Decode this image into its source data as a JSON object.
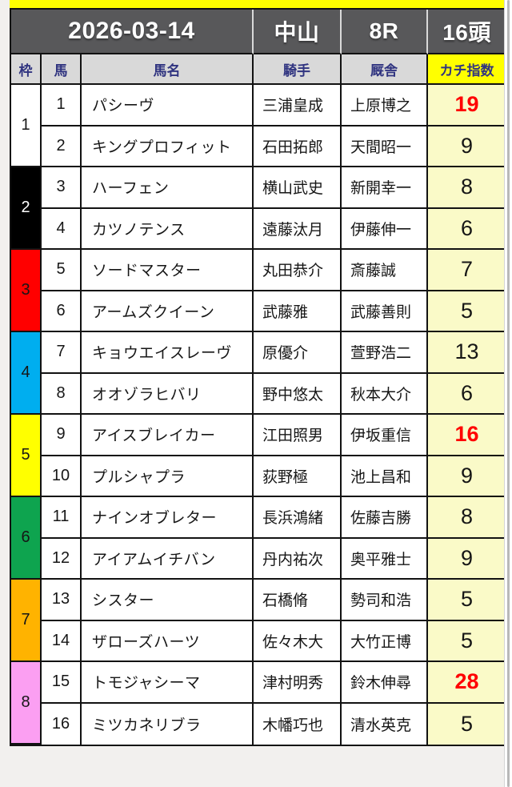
{
  "header": {
    "date": "2026-03-14",
    "venue": "中山",
    "race": "8R",
    "heads": "16頭"
  },
  "columns": [
    "枠",
    "馬",
    "馬名",
    "騎手",
    "厩舎",
    "カチ指数"
  ],
  "colors": {
    "top_bar": "#ffff00",
    "race_header_bg": "#58585a",
    "column_header_bg": "#d9d9d9",
    "column_header_text": "#303480",
    "index_header_bg": "#ffff00",
    "index_cell_bg": "#fafac8",
    "index_highlight_text": "#ff0000",
    "frame_1": "#ffffff",
    "frame_2": "#000000",
    "frame_3": "#ff0000",
    "frame_4": "#00aeef",
    "frame_5": "#ffff00",
    "frame_6": "#0ea44f",
    "frame_7": "#ffb300",
    "frame_8": "#fb9ff2"
  },
  "frames": [
    {
      "number": "1",
      "bg": "#ffffff",
      "fg": "#161616",
      "horses": [
        {
          "num": "1",
          "name": "パシーヴ",
          "jockey": "三浦皇成",
          "stable": "上原博之",
          "index": "19",
          "highlight": true
        },
        {
          "num": "2",
          "name": "キングプロフィット",
          "jockey": "石田拓郎",
          "stable": "天間昭一",
          "index": "9",
          "highlight": false
        }
      ]
    },
    {
      "number": "2",
      "bg": "#000000",
      "fg": "#ffffff",
      "horses": [
        {
          "num": "3",
          "name": "ハーフェン",
          "jockey": "横山武史",
          "stable": "新開幸一",
          "index": "8",
          "highlight": false
        },
        {
          "num": "4",
          "name": "カツノテンス",
          "jockey": "遠藤汰月",
          "stable": "伊藤伸一",
          "index": "6",
          "highlight": false
        }
      ]
    },
    {
      "number": "3",
      "bg": "#ff0000",
      "fg": "#161616",
      "horses": [
        {
          "num": "5",
          "name": "ソードマスター",
          "jockey": "丸田恭介",
          "stable": "斎藤誠",
          "index": "7",
          "highlight": false
        },
        {
          "num": "6",
          "name": "アームズクイーン",
          "jockey": "武藤雅",
          "stable": "武藤善則",
          "index": "5",
          "highlight": false
        }
      ]
    },
    {
      "number": "4",
      "bg": "#00aeef",
      "fg": "#161616",
      "horses": [
        {
          "num": "7",
          "name": "キョウエイスレーヴ",
          "jockey": "原優介",
          "stable": "萱野浩二",
          "index": "13",
          "highlight": false
        },
        {
          "num": "8",
          "name": "オオゾラヒバリ",
          "jockey": "野中悠太",
          "stable": "秋本大介",
          "index": "6",
          "highlight": false
        }
      ]
    },
    {
      "number": "5",
      "bg": "#ffff00",
      "fg": "#161616",
      "horses": [
        {
          "num": "9",
          "name": "アイスブレイカー",
          "jockey": "江田照男",
          "stable": "伊坂重信",
          "index": "16",
          "highlight": true
        },
        {
          "num": "10",
          "name": "プルシャプラ",
          "jockey": "荻野極",
          "stable": "池上昌和",
          "index": "9",
          "highlight": false
        }
      ]
    },
    {
      "number": "6",
      "bg": "#0ea44f",
      "fg": "#161616",
      "horses": [
        {
          "num": "11",
          "name": "ナインオブレター",
          "jockey": "長浜鴻緒",
          "stable": "佐藤吉勝",
          "index": "8",
          "highlight": false
        },
        {
          "num": "12",
          "name": "アイアムイチバン",
          "jockey": "丹内祐次",
          "stable": "奥平雅士",
          "index": "9",
          "highlight": false
        }
      ]
    },
    {
      "number": "7",
      "bg": "#ffb300",
      "fg": "#161616",
      "horses": [
        {
          "num": "13",
          "name": "シスター",
          "jockey": "石橋脩",
          "stable": "勢司和浩",
          "index": "5",
          "highlight": false
        },
        {
          "num": "14",
          "name": "ザローズハーツ",
          "jockey": "佐々木大",
          "stable": "大竹正博",
          "index": "5",
          "highlight": false
        }
      ]
    },
    {
      "number": "8",
      "bg": "#fb9ff2",
      "fg": "#161616",
      "horses": [
        {
          "num": "15",
          "name": "トモジャシーマ",
          "jockey": "津村明秀",
          "stable": "鈴木伸尋",
          "index": "28",
          "highlight": true
        },
        {
          "num": "16",
          "name": "ミツカネリブラ",
          "jockey": "木幡巧也",
          "stable": "清水英克",
          "index": "5",
          "highlight": false
        }
      ]
    }
  ]
}
